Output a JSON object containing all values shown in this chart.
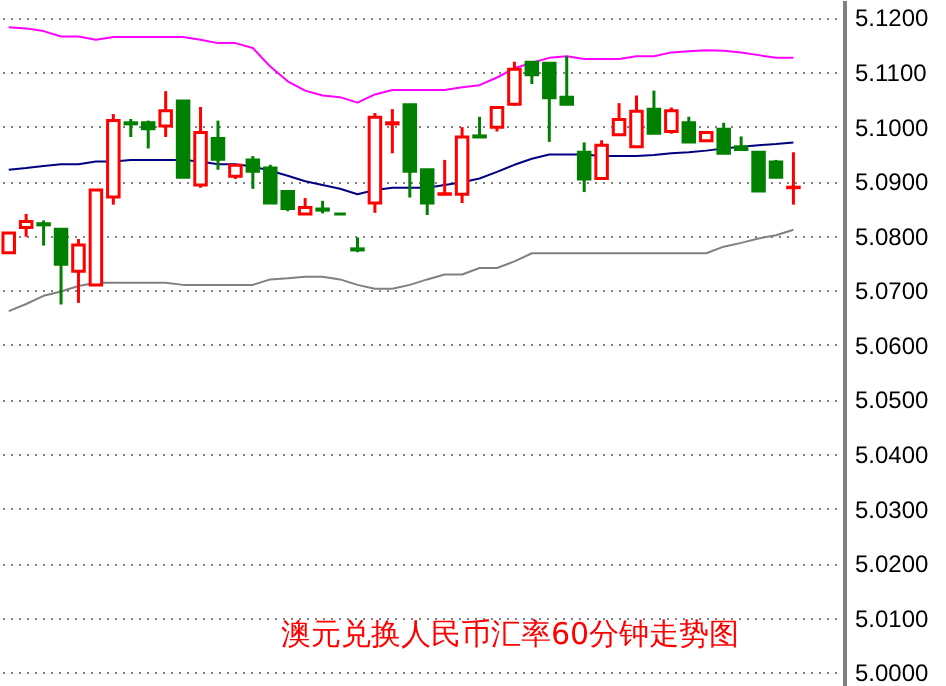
{
  "chart_data": {
    "type": "candlestick",
    "title": "澳元兑换人民币汇率60分钟走势图",
    "categories": [
      null,
      null,
      null,
      null,
      null,
      null,
      null,
      null,
      null,
      null,
      null,
      null,
      null,
      null,
      null,
      null,
      null,
      null,
      null,
      null,
      null,
      null,
      null,
      null,
      null,
      null,
      null,
      null,
      null,
      null,
      null,
      null,
      null,
      null,
      null,
      null,
      null,
      null,
      null,
      null,
      null,
      null,
      null,
      null,
      null,
      null
    ],
    "ohlc": [
      [
        5.0769,
        5.0805,
        5.0769,
        5.0805
      ],
      [
        5.0815,
        5.084,
        5.0798,
        5.0826
      ],
      [
        5.0822,
        5.0828,
        5.0782,
        5.082
      ],
      [
        5.0812,
        5.0812,
        5.0674,
        5.0748
      ],
      [
        5.0735,
        5.0794,
        5.0677,
        5.0783
      ],
      [
        5.071,
        5.0884,
        5.071,
        5.0884
      ],
      [
        5.0871,
        5.1023,
        5.0857,
        5.1011
      ],
      [
        5.1007,
        5.1014,
        5.0981,
        5.1005
      ],
      [
        5.1007,
        5.1011,
        5.096,
        5.0996
      ],
      [
        5.1001,
        5.1065,
        5.0981,
        5.1029
      ],
      [
        5.1047,
        5.1047,
        5.0907,
        5.0907
      ],
      [
        5.0893,
        5.1036,
        5.0888,
        5.0989
      ],
      [
        5.0978,
        5.1011,
        5.0921,
        5.094
      ],
      [
        5.0909,
        5.0929,
        5.0904,
        5.0929
      ],
      [
        5.0939,
        5.0946,
        5.0886,
        5.0918
      ],
      [
        5.0924,
        5.093,
        5.086,
        5.086
      ],
      [
        5.0881,
        5.0881,
        5.0845,
        5.085
      ],
      [
        5.084,
        5.0869,
        5.084,
        5.0852
      ],
      [
        5.0849,
        5.0864,
        5.0841,
        5.0847
      ],
      [
        5.084,
        5.084,
        5.084,
        5.084
      ],
      [
        5.0776,
        5.0797,
        5.077,
        5.0774
      ],
      [
        5.086,
        5.1025,
        5.0842,
        5.1017
      ],
      [
        5.1005,
        5.1032,
        5.0951,
        5.1007
      ],
      [
        5.104,
        5.104,
        5.087,
        5.0918
      ],
      [
        5.0921,
        5.0921,
        5.0838,
        5.086
      ],
      [
        5.0876,
        5.0939,
        5.0876,
        5.0877
      ],
      [
        5.0876,
        5.0999,
        5.086,
        5.0981
      ],
      [
        5.0983,
        5.1018,
        5.0981,
        5.0981
      ],
      [
        5.0999,
        5.1035,
        5.0991,
        5.1035
      ],
      [
        5.1041,
        5.1119,
        5.1038,
        5.1105
      ],
      [
        5.1118,
        5.1118,
        5.1078,
        5.1095
      ],
      [
        5.1116,
        5.1116,
        5.0972,
        5.1053
      ],
      [
        5.1054,
        5.1129,
        5.1041,
        5.1041
      ],
      [
        5.0953,
        5.0971,
        5.088,
        5.0904
      ],
      [
        5.0905,
        5.0975,
        5.0905,
        5.0966
      ],
      [
        5.0985,
        5.1043,
        5.0985,
        5.1013
      ],
      [
        5.0963,
        5.1057,
        5.0963,
        5.1028
      ],
      [
        5.1032,
        5.1066,
        5.0988,
        5.0988
      ],
      [
        5.0991,
        5.1035,
        5.0987,
        5.1029
      ],
      [
        5.1007,
        5.1018,
        5.0972,
        5.0972
      ],
      [
        5.0974,
        5.0989,
        5.0974,
        5.0989
      ],
      [
        5.0995,
        5.1007,
        5.0951,
        5.0951
      ],
      [
        5.0963,
        5.0982,
        5.0958,
        5.0958
      ],
      [
        5.0953,
        5.0953,
        5.0882,
        5.0882
      ],
      [
        5.0935,
        5.0939,
        5.0907,
        5.0907
      ],
      [
        5.0888,
        5.0953,
        5.0857,
        5.0889
      ]
    ],
    "colors": [
      "#ff0000",
      "#ff0000",
      "#008000",
      "#008000",
      "#ff0000",
      "#ff0000",
      "#ff0000",
      "#008000",
      "#008000",
      "#ff0000",
      "#008000",
      "#ff0000",
      "#008000",
      "#ff0000",
      "#008000",
      "#008000",
      "#008000",
      "#ff0000",
      "#008000",
      "#008000",
      "#008000",
      "#ff0000",
      "#ff0000",
      "#008000",
      "#008000",
      "#ff0000",
      "#ff0000",
      "#008000",
      "#ff0000",
      "#ff0000",
      "#008000",
      "#008000",
      "#008000",
      "#008000",
      "#ff0000",
      "#ff0000",
      "#ff0000",
      "#008000",
      "#ff0000",
      "#008000",
      "#ff0000",
      "#008000",
      "#008000",
      "#008000",
      "#008000",
      "#ff0000"
    ],
    "series": [
      {
        "type": "line",
        "color": "#ff00ff",
        "values": [
          5.1182,
          5.118,
          5.1175,
          5.1165,
          5.1165,
          5.1159,
          5.1164,
          5.1164,
          5.1164,
          5.1164,
          5.1164,
          5.1159,
          5.1153,
          5.1153,
          5.1144,
          5.111,
          5.1083,
          5.1066,
          5.1057,
          5.1054,
          5.1044,
          5.1059,
          5.1067,
          5.1067,
          5.1067,
          5.1067,
          5.1072,
          5.1076,
          5.109,
          5.1107,
          5.1117,
          5.1126,
          5.1129,
          5.1124,
          5.1124,
          5.1124,
          5.1129,
          5.1129,
          5.1136,
          5.1138,
          5.114,
          5.1139,
          5.1136,
          5.1131,
          5.1126,
          5.1126
        ]
      },
      {
        "type": "line",
        "color": "#000080",
        "values": [
          5.0921,
          5.0924,
          5.0928,
          5.0931,
          5.0931,
          5.0936,
          5.0936,
          5.0939,
          5.0939,
          5.0939,
          5.0939,
          5.0936,
          5.0931,
          5.0931,
          5.0927,
          5.0919,
          5.091,
          5.09,
          5.0893,
          5.0886,
          5.0876,
          5.0884,
          5.0888,
          5.0888,
          5.0888,
          5.0893,
          5.0898,
          5.0905,
          5.0917,
          5.093,
          5.0941,
          5.0949,
          5.0949,
          5.0949,
          5.0946,
          5.0946,
          5.0946,
          5.0948,
          5.0951,
          5.0953,
          5.0956,
          5.096,
          5.0963,
          5.0966,
          5.0968,
          5.0971
        ]
      },
      {
        "type": "line",
        "color": "#808080",
        "values": [
          5.0662,
          5.0675,
          5.069,
          5.0698,
          5.0708,
          5.0714,
          5.0714,
          5.0714,
          5.0714,
          5.0714,
          5.071,
          5.071,
          5.071,
          5.071,
          5.071,
          5.072,
          5.0722,
          5.0725,
          5.0725,
          5.072,
          5.071,
          5.0703,
          5.0703,
          5.071,
          5.072,
          5.0729,
          5.0729,
          5.0741,
          5.0741,
          5.0753,
          5.0768,
          5.0768,
          5.0768,
          5.0768,
          5.0768,
          5.0768,
          5.0768,
          5.0768,
          5.0768,
          5.0768,
          5.0768,
          5.078,
          5.0787,
          5.0795,
          5.0801,
          5.0811
        ]
      }
    ],
    "ylim": [
      4.9975,
      5.1232
    ],
    "yticks": [
      {
        "value": 5.0,
        "label": "5.0000"
      },
      {
        "value": 5.01,
        "label": "5.0100"
      },
      {
        "value": 5.02,
        "label": "5.0200"
      },
      {
        "value": 5.03,
        "label": "5.0300"
      },
      {
        "value": 5.04,
        "label": "5.0400"
      },
      {
        "value": 5.05,
        "label": "5.0500"
      },
      {
        "value": 5.06,
        "label": "5.0600"
      },
      {
        "value": 5.07,
        "label": "5.0700"
      },
      {
        "value": 5.08,
        "label": "5.0800"
      },
      {
        "value": 5.09,
        "label": "5.0900"
      },
      {
        "value": 5.1,
        "label": "5.1000"
      },
      {
        "value": 5.11,
        "label": "5.1100"
      },
      {
        "value": 5.12,
        "label": "5.1200"
      }
    ],
    "grid": "y"
  }
}
